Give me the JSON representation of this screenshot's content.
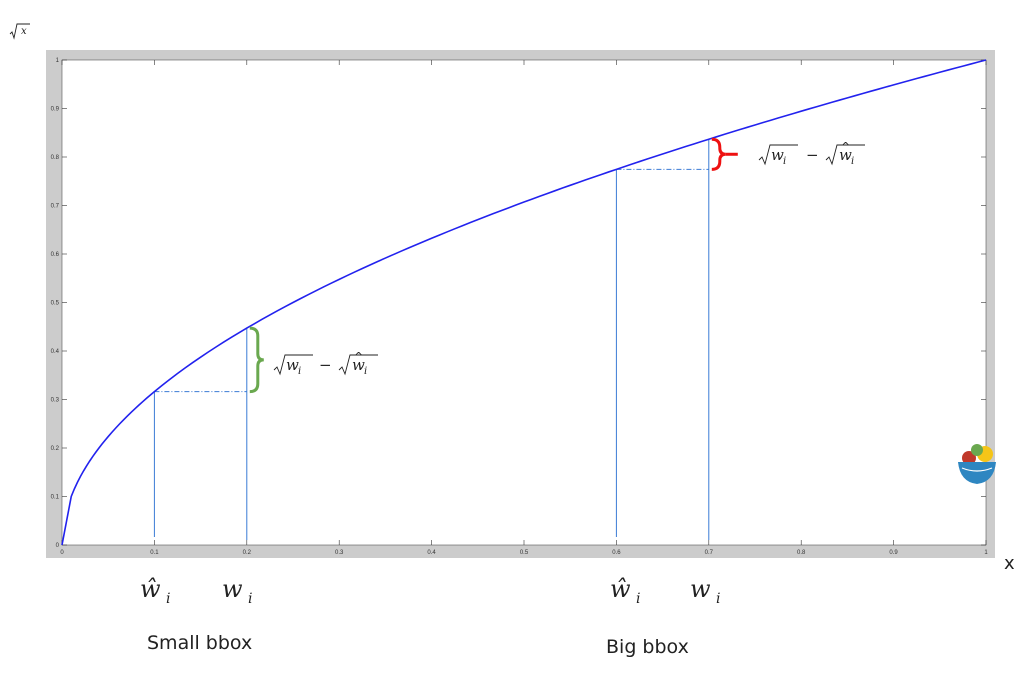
{
  "chart_data": {
    "type": "line",
    "title": "",
    "ylabel": "√x",
    "xlabel": "x",
    "xlim": [
      0,
      1
    ],
    "ylim": [
      0,
      1
    ],
    "grid": false,
    "x_ticks": [
      "0",
      "0.1",
      "0.2",
      "0.3",
      "0.4",
      "0.5",
      "0.6",
      "0.7",
      "0.8",
      "0.9",
      "1"
    ],
    "y_ticks": [
      "0",
      "0.1",
      "0.2",
      "0.3",
      "0.4",
      "0.5",
      "0.6",
      "0.7",
      "0.8",
      "0.9",
      "1"
    ],
    "series": [
      {
        "function": "sqrt(x)",
        "color": "#2222ee",
        "x": [
          0,
          0.01,
          0.05,
          0.1,
          0.2,
          0.3,
          0.4,
          0.5,
          0.6,
          0.7,
          0.8,
          0.9,
          1.0
        ],
        "y": [
          0,
          0.1,
          0.224,
          0.316,
          0.447,
          0.548,
          0.632,
          0.707,
          0.775,
          0.837,
          0.894,
          0.949,
          1.0
        ]
      }
    ],
    "annotations": [
      {
        "group": "small",
        "x_hat": 0.1,
        "x": 0.2,
        "bracket_color": "#6aa84f",
        "formula": "√wᵢ − √ŵᵢ"
      },
      {
        "group": "big",
        "x_hat": 0.6,
        "x": 0.7,
        "bracket_color": "#ee1111",
        "formula": "√wᵢ − √ŵᵢ"
      }
    ]
  },
  "labels": {
    "w_hat": "ŵ",
    "w": "w",
    "subscript": "i",
    "small_caption": "Small bbox",
    "big_caption": "Big bbox",
    "axis_x": "x",
    "axis_y": "√x"
  },
  "colors": {
    "frame": "#cccccc",
    "curve": "#2222ee",
    "guide": "#3a7bd5"
  }
}
